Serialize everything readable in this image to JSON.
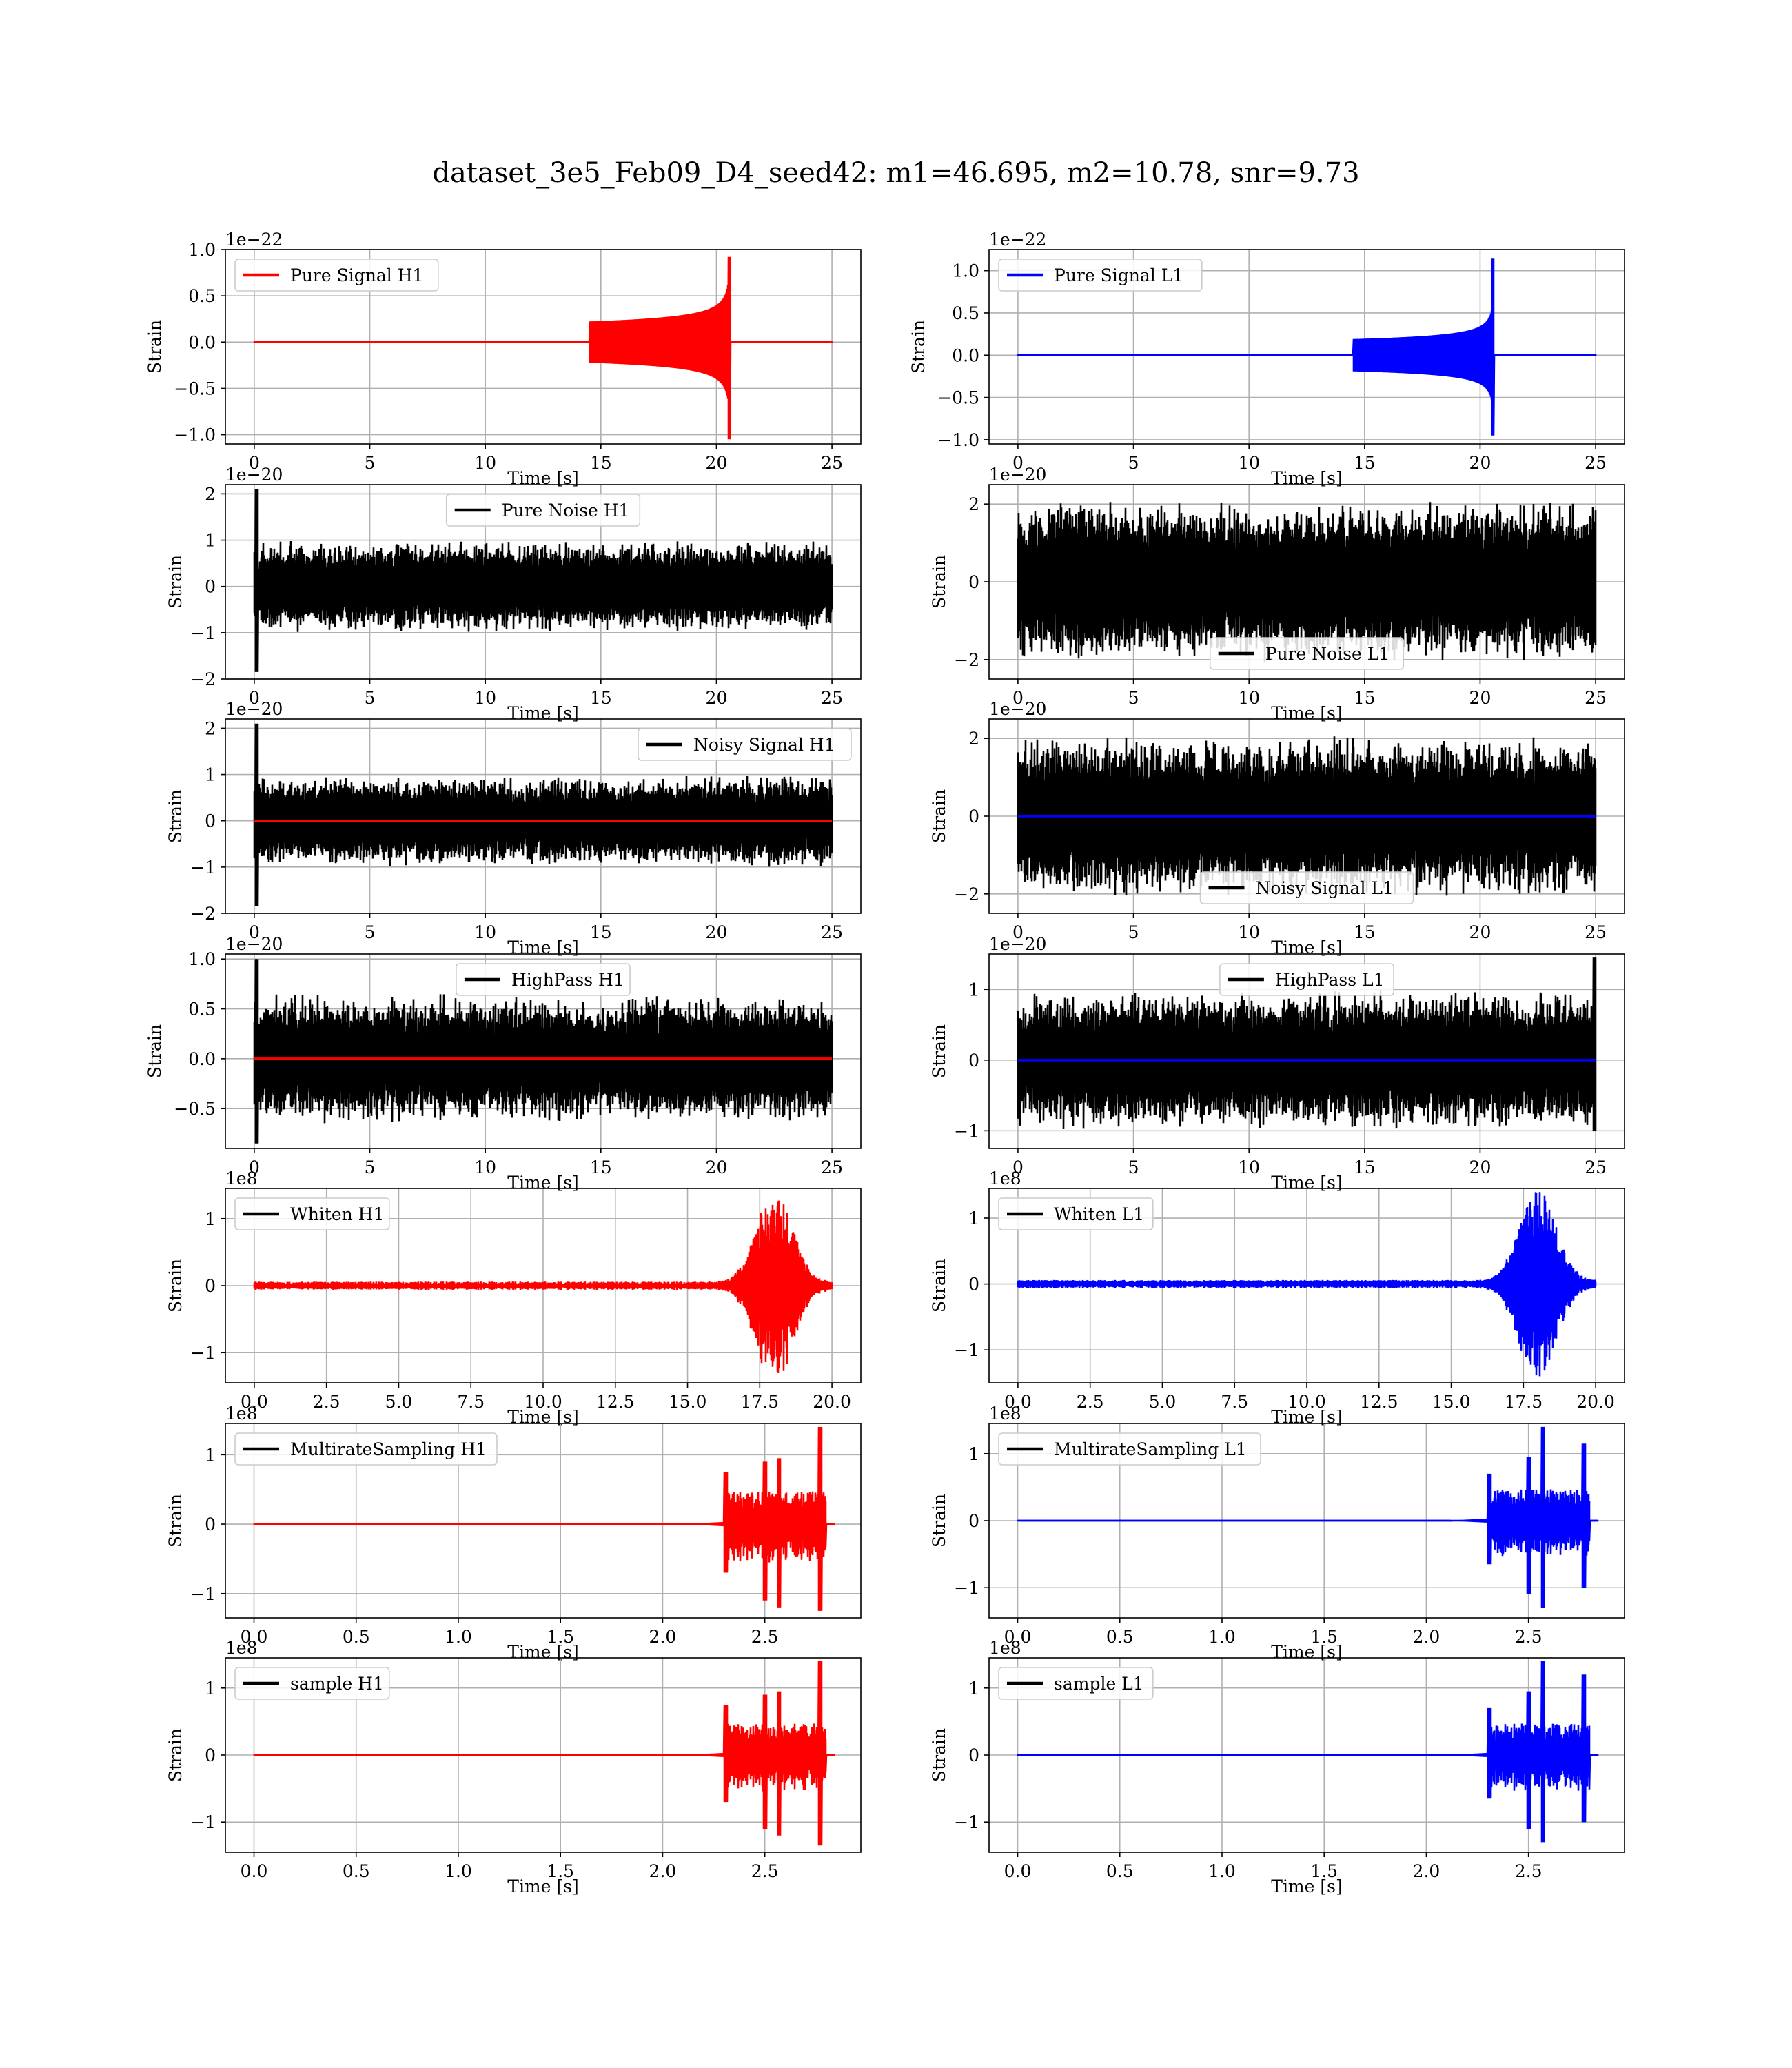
{
  "figure": {
    "title": "dataset_3e5_Feb09_D4_seed42: m1=46.695, m2=10.78, snr=9.73"
  },
  "colors": {
    "h1_signal": "#ff0000",
    "l1_signal": "#0000ff",
    "noise": "#000000",
    "grid": "#b0b0b0"
  },
  "chart_data": [
    {
      "type": "line",
      "legend": "Pure Signal H1",
      "legend_loc": "upper left",
      "legend_color": "#ff0000",
      "offset_text": "1e−22",
      "xlabel": "Time [s]",
      "ylabel": "Strain",
      "xlim": [
        -1.25,
        26.25
      ],
      "ylim": [
        -1.1,
        1.0
      ],
      "xticks": [
        0,
        5,
        10,
        15,
        20,
        25
      ],
      "xtick_labels": [
        "0",
        "5",
        "10",
        "15",
        "20",
        "25"
      ],
      "yticks": [
        -1.0,
        -0.5,
        0.0,
        0.5,
        1.0
      ],
      "ytick_labels": [
        "−1.0",
        "−0.5",
        "0.0",
        "0.5",
        "1.0"
      ],
      "x_range": [
        0,
        25
      ],
      "series": [
        {
          "kind": "chirp",
          "color": "#ff0000",
          "merger": 20.6,
          "start": 14.5,
          "peak_pos": 0.92,
          "peak_neg": -1.05,
          "amp_at_minus1": 0.35
        }
      ]
    },
    {
      "type": "line",
      "legend": "Pure Signal L1",
      "legend_loc": "upper left",
      "legend_color": "#0000ff",
      "offset_text": "1e−22",
      "xlabel": "Time [s]",
      "ylabel": "Strain",
      "xlim": [
        -1.25,
        26.25
      ],
      "ylim": [
        -1.05,
        1.25
      ],
      "xticks": [
        0,
        5,
        10,
        15,
        20,
        25
      ],
      "xtick_labels": [
        "0",
        "5",
        "10",
        "15",
        "20",
        "25"
      ],
      "yticks": [
        -1.0,
        -0.5,
        0.0,
        0.5,
        1.0
      ],
      "ytick_labels": [
        "−1.0",
        "−0.5",
        "0.0",
        "0.5",
        "1.0"
      ],
      "x_range": [
        0,
        25
      ],
      "series": [
        {
          "kind": "chirp",
          "color": "#0000ff",
          "merger": 20.6,
          "start": 14.5,
          "peak_pos": 1.15,
          "peak_neg": -0.95,
          "amp_at_minus1": 0.3
        }
      ]
    },
    {
      "type": "line",
      "legend": "Pure Noise H1",
      "legend_loc": "upper center",
      "legend_color": "#000000",
      "offset_text": "1e−20",
      "xlabel": "Time [s]",
      "ylabel": "Strain",
      "xlim": [
        -1.25,
        26.25
      ],
      "ylim": [
        -2.0,
        2.2
      ],
      "xticks": [
        0,
        5,
        10,
        15,
        20,
        25
      ],
      "xtick_labels": [
        "0",
        "5",
        "10",
        "15",
        "20",
        "25"
      ],
      "yticks": [
        -2,
        -1,
        0,
        1,
        2
      ],
      "ytick_labels": [
        "−2",
        "−1",
        "0",
        "1",
        "2"
      ],
      "x_range": [
        0,
        25
      ],
      "series": [
        {
          "kind": "noise",
          "color": "#000000",
          "amp": 1.0,
          "spike_at": 0.1,
          "spike_pos": 2.1,
          "spike_neg": -1.85
        }
      ]
    },
    {
      "type": "line",
      "legend": "Pure Noise L1",
      "legend_loc": "lower center",
      "legend_color": "#000000",
      "offset_text": "1e−20",
      "xlabel": "Time [s]",
      "ylabel": "Strain",
      "xlim": [
        -1.25,
        26.25
      ],
      "ylim": [
        -2.5,
        2.5
      ],
      "xticks": [
        0,
        5,
        10,
        15,
        20,
        25
      ],
      "xtick_labels": [
        "0",
        "5",
        "10",
        "15",
        "20",
        "25"
      ],
      "yticks": [
        -2,
        0,
        2
      ],
      "ytick_labels": [
        "−2",
        "0",
        "2"
      ],
      "x_range": [
        0,
        25
      ],
      "series": [
        {
          "kind": "noise",
          "color": "#000000",
          "amp": 2.1
        }
      ]
    },
    {
      "type": "line",
      "legend": "Noisy Signal H1",
      "legend_loc": "upper right",
      "legend_color": "#000000",
      "offset_text": "1e−20",
      "xlabel": "Time [s]",
      "ylabel": "Strain",
      "xlim": [
        -1.25,
        26.25
      ],
      "ylim": [
        -2.0,
        2.2
      ],
      "xticks": [
        0,
        5,
        10,
        15,
        20,
        25
      ],
      "xtick_labels": [
        "0",
        "5",
        "10",
        "15",
        "20",
        "25"
      ],
      "yticks": [
        -2,
        -1,
        0,
        1,
        2
      ],
      "ytick_labels": [
        "−2",
        "−1",
        "0",
        "1",
        "2"
      ],
      "x_range": [
        0,
        25
      ],
      "series": [
        {
          "kind": "noise",
          "color": "#000000",
          "amp": 1.0,
          "spike_at": 0.1,
          "spike_pos": 2.1,
          "spike_neg": -1.85
        },
        {
          "kind": "flat",
          "color": "#ff0000"
        }
      ]
    },
    {
      "type": "line",
      "legend": "Noisy Signal L1",
      "legend_loc": "lower center",
      "legend_color": "#000000",
      "offset_text": "1e−20",
      "xlabel": "Time [s]",
      "ylabel": "Strain",
      "xlim": [
        -1.25,
        26.25
      ],
      "ylim": [
        -2.5,
        2.5
      ],
      "xticks": [
        0,
        5,
        10,
        15,
        20,
        25
      ],
      "xtick_labels": [
        "0",
        "5",
        "10",
        "15",
        "20",
        "25"
      ],
      "yticks": [
        -2,
        0,
        2
      ],
      "ytick_labels": [
        "−2",
        "0",
        "2"
      ],
      "x_range": [
        0,
        25
      ],
      "series": [
        {
          "kind": "noise",
          "color": "#000000",
          "amp": 2.1
        },
        {
          "kind": "flat",
          "color": "#0000ff"
        }
      ]
    },
    {
      "type": "line",
      "legend": "HighPass H1",
      "legend_loc": "upper center",
      "legend_color": "#000000",
      "offset_text": "1e−20",
      "xlabel": "Time [s]",
      "ylabel": "Strain",
      "xlim": [
        -1.25,
        26.25
      ],
      "ylim": [
        -0.9,
        1.05
      ],
      "xticks": [
        0,
        5,
        10,
        15,
        20,
        25
      ],
      "xtick_labels": [
        "0",
        "5",
        "10",
        "15",
        "20",
        "25"
      ],
      "yticks": [
        -0.5,
        0.0,
        0.5,
        1.0
      ],
      "ytick_labels": [
        "−0.5",
        "0.0",
        "0.5",
        "1.0"
      ],
      "x_range": [
        0,
        25
      ],
      "series": [
        {
          "kind": "noise",
          "color": "#000000",
          "amp": 0.65,
          "spike_at": 0.1,
          "spike_pos": 1.0,
          "spike_neg": -0.85
        },
        {
          "kind": "flat",
          "color": "#ff0000"
        }
      ]
    },
    {
      "type": "line",
      "legend": "HighPass L1",
      "legend_loc": "upper center",
      "legend_color": "#000000",
      "offset_text": "1e−20",
      "xlabel": "Time [s]",
      "ylabel": "Strain",
      "xlim": [
        -1.25,
        26.25
      ],
      "ylim": [
        -1.25,
        1.5
      ],
      "xticks": [
        0,
        5,
        10,
        15,
        20,
        25
      ],
      "xtick_labels": [
        "0",
        "5",
        "10",
        "15",
        "20",
        "25"
      ],
      "yticks": [
        -1,
        0,
        1
      ],
      "ytick_labels": [
        "−1",
        "0",
        "1"
      ],
      "x_range": [
        0,
        25
      ],
      "series": [
        {
          "kind": "noise",
          "color": "#000000",
          "amp": 1.0,
          "spike_at": 24.95,
          "spike_pos": 1.45,
          "spike_neg": -1.0
        },
        {
          "kind": "flat",
          "color": "#0000ff"
        }
      ]
    },
    {
      "type": "line",
      "legend": "Whiten H1",
      "legend_loc": "upper left",
      "legend_color": "#000000",
      "offset_text": "1e8",
      "xlabel": "Time [s]",
      "ylabel": "Strain",
      "xlim": [
        -1.0,
        21.0
      ],
      "ylim": [
        -1.45,
        1.45
      ],
      "xticks": [
        0,
        2.5,
        5,
        7.5,
        10,
        12.5,
        15,
        17.5,
        20
      ],
      "xtick_labels": [
        "0.0",
        "2.5",
        "5.0",
        "7.5",
        "10.0",
        "12.5",
        "15.0",
        "17.5",
        "20.0"
      ],
      "yticks": [
        -1,
        0,
        1
      ],
      "ytick_labels": [
        "−1",
        "0",
        "1"
      ],
      "x_range": [
        0,
        20
      ],
      "series": [
        {
          "kind": "burst",
          "color": "#ff0000",
          "center": 18.0,
          "width": 0.9,
          "peak": 1.35,
          "floor": 0.04
        }
      ]
    },
    {
      "type": "line",
      "legend": "Whiten L1",
      "legend_loc": "upper left",
      "legend_color": "#000000",
      "offset_text": "1e8",
      "xlabel": "Time [s]",
      "ylabel": "Strain",
      "xlim": [
        -1.0,
        21.0
      ],
      "ylim": [
        -1.5,
        1.45
      ],
      "xticks": [
        0,
        2.5,
        5,
        7.5,
        10,
        12.5,
        15,
        17.5,
        20
      ],
      "xtick_labels": [
        "0.0",
        "2.5",
        "5.0",
        "7.5",
        "10.0",
        "12.5",
        "15.0",
        "17.5",
        "20.0"
      ],
      "yticks": [
        -1,
        0,
        1
      ],
      "ytick_labels": [
        "−1",
        "0",
        "1"
      ],
      "x_range": [
        0,
        20
      ],
      "series": [
        {
          "kind": "burst",
          "color": "#0000ff",
          "center": 18.0,
          "width": 0.9,
          "peak": 1.4,
          "floor": 0.04
        }
      ]
    },
    {
      "type": "line",
      "legend": "MultirateSampling H1",
      "legend_loc": "upper left",
      "legend_color": "#000000",
      "offset_text": "1e8",
      "xlabel": "Time [s]",
      "ylabel": "Strain",
      "xlim": [
        -0.14,
        2.97
      ],
      "ylim": [
        -1.35,
        1.45
      ],
      "xticks": [
        0,
        0.5,
        1.0,
        1.5,
        2.0,
        2.5
      ],
      "xtick_labels": [
        "0.0",
        "0.5",
        "1.0",
        "1.5",
        "2.0",
        "2.5"
      ],
      "yticks": [
        -1,
        0,
        1
      ],
      "ytick_labels": [
        "−1",
        "0",
        "1"
      ],
      "x_range": [
        0,
        2.84
      ],
      "series": [
        {
          "kind": "multirate",
          "color": "#ff0000",
          "seg_start": 2.3,
          "seg_end": 2.8,
          "spikes": [
            [
              2.31,
              0.75,
              -0.7
            ],
            [
              2.5,
              0.9,
              -1.1
            ],
            [
              2.57,
              0.95,
              -1.2
            ],
            [
              2.77,
              1.4,
              -1.25
            ]
          ]
        }
      ]
    },
    {
      "type": "line",
      "legend": "MultirateSampling L1",
      "legend_loc": "upper left",
      "legend_color": "#000000",
      "offset_text": "1e8",
      "xlabel": "Time [s]",
      "ylabel": "Strain",
      "xlim": [
        -0.14,
        2.97
      ],
      "ylim": [
        -1.45,
        1.45
      ],
      "xticks": [
        0,
        0.5,
        1.0,
        1.5,
        2.0,
        2.5
      ],
      "xtick_labels": [
        "0.0",
        "0.5",
        "1.0",
        "1.5",
        "2.0",
        "2.5"
      ],
      "yticks": [
        -1,
        0,
        1
      ],
      "ytick_labels": [
        "−1",
        "0",
        "1"
      ],
      "x_range": [
        0,
        2.84
      ],
      "series": [
        {
          "kind": "multirate",
          "color": "#0000ff",
          "seg_start": 2.3,
          "seg_end": 2.8,
          "spikes": [
            [
              2.31,
              0.7,
              -0.65
            ],
            [
              2.5,
              0.95,
              -1.1
            ],
            [
              2.57,
              1.4,
              -1.3
            ],
            [
              2.77,
              1.15,
              -1.0
            ]
          ]
        }
      ]
    },
    {
      "type": "line",
      "legend": "sample H1",
      "legend_loc": "upper left",
      "legend_color": "#000000",
      "offset_text": "1e8",
      "xlabel": "Time [s]",
      "ylabel": "Strain",
      "xlim": [
        -0.14,
        2.97
      ],
      "ylim": [
        -1.45,
        1.45
      ],
      "xticks": [
        0,
        0.5,
        1.0,
        1.5,
        2.0,
        2.5
      ],
      "xtick_labels": [
        "0.0",
        "0.5",
        "1.0",
        "1.5",
        "2.0",
        "2.5"
      ],
      "yticks": [
        -1,
        0,
        1
      ],
      "ytick_labels": [
        "−1",
        "0",
        "1"
      ],
      "x_range": [
        0,
        2.84
      ],
      "series": [
        {
          "kind": "multirate",
          "color": "#ff0000",
          "seg_start": 2.3,
          "seg_end": 2.8,
          "spikes": [
            [
              2.31,
              0.75,
              -0.7
            ],
            [
              2.5,
              0.9,
              -1.1
            ],
            [
              2.57,
              0.95,
              -1.2
            ],
            [
              2.77,
              1.4,
              -1.35
            ]
          ]
        }
      ]
    },
    {
      "type": "line",
      "legend": "sample L1",
      "legend_loc": "upper left",
      "legend_color": "#000000",
      "offset_text": "1e8",
      "xlabel": "Time [s]",
      "ylabel": "Strain",
      "xlim": [
        -0.14,
        2.97
      ],
      "ylim": [
        -1.45,
        1.45
      ],
      "xticks": [
        0,
        0.5,
        1.0,
        1.5,
        2.0,
        2.5
      ],
      "xtick_labels": [
        "0.0",
        "0.5",
        "1.0",
        "1.5",
        "2.0",
        "2.5"
      ],
      "yticks": [
        -1,
        0,
        1
      ],
      "ytick_labels": [
        "−1",
        "0",
        "1"
      ],
      "x_range": [
        0,
        2.84
      ],
      "series": [
        {
          "kind": "multirate",
          "color": "#0000ff",
          "seg_start": 2.3,
          "seg_end": 2.8,
          "spikes": [
            [
              2.31,
              0.7,
              -0.65
            ],
            [
              2.5,
              0.95,
              -1.1
            ],
            [
              2.57,
              1.4,
              -1.3
            ],
            [
              2.77,
              1.2,
              -1.0
            ]
          ]
        }
      ]
    }
  ]
}
